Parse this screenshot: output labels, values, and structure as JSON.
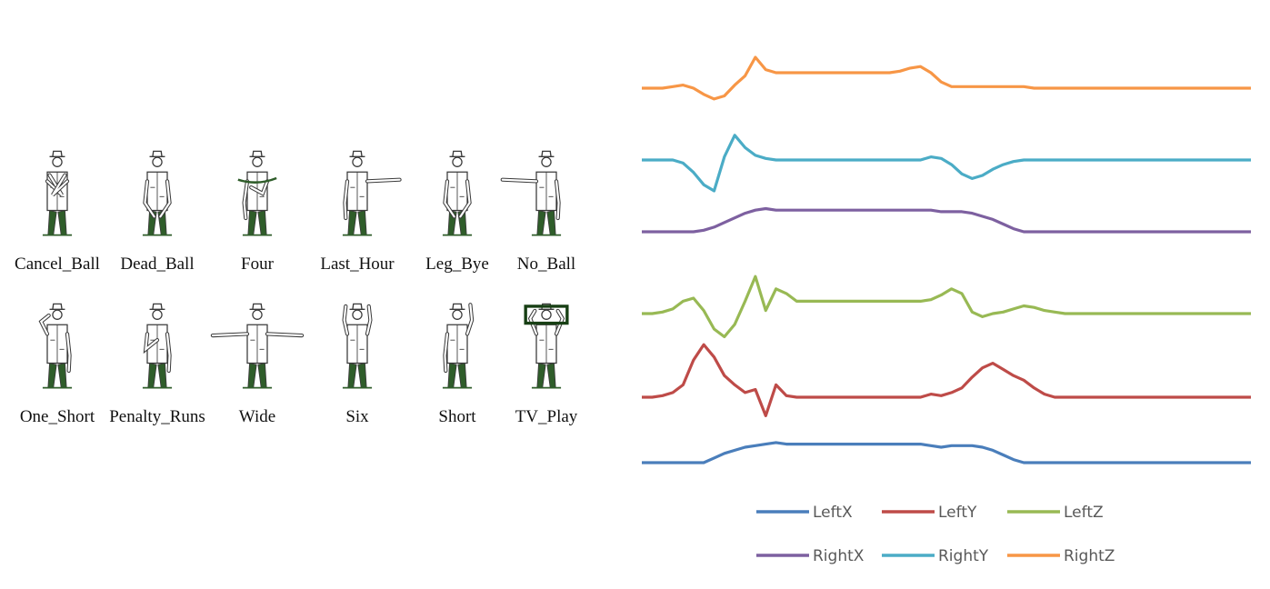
{
  "gestures": [
    {
      "label": "Cancel_Ball",
      "pose": "cross"
    },
    {
      "label": "Dead_Ball",
      "pose": "down"
    },
    {
      "label": "Four",
      "pose": "wave"
    },
    {
      "label": "Last_Hour",
      "pose": "point-right"
    },
    {
      "label": "Leg_Bye",
      "pose": "down"
    },
    {
      "label": "No_Ball",
      "pose": "arm-out-left"
    },
    {
      "label": "One_Short",
      "pose": "touch-shoulder"
    },
    {
      "label": "Penalty_Runs",
      "pose": "hand-on-shoulder"
    },
    {
      "label": "Wide",
      "pose": "both-arms-out"
    },
    {
      "label": "Six",
      "pose": "both-arms-up"
    },
    {
      "label": "Short",
      "pose": "one-arm-up"
    },
    {
      "label": "TV_Play",
      "pose": "tv-box"
    }
  ],
  "colors": {
    "figure_stroke": "#3a3a3a",
    "figure_accent": "#2f5d2a",
    "text": "#111111",
    "legend_text": "#595959"
  },
  "chart_data": {
    "type": "line",
    "title": "",
    "xlabel": "",
    "ylabel": "",
    "grid": false,
    "legend_position": "bottom",
    "x_points": 60,
    "stacked_offsets": true,
    "series": [
      {
        "name": "LeftX",
        "color": "#4a7ebb",
        "values": [
          0,
          0,
          0,
          0,
          0,
          0,
          0,
          0.3,
          0.6,
          0.8,
          1,
          1.1,
          1.2,
          1.3,
          1.2,
          1.2,
          1.2,
          1.2,
          1.2,
          1.2,
          1.2,
          1.2,
          1.2,
          1.2,
          1.2,
          1.2,
          1.2,
          1.2,
          1.1,
          1,
          1.1,
          1.1,
          1.1,
          1.0,
          0.8,
          0.5,
          0.2,
          0,
          0,
          0,
          0,
          0,
          0,
          0,
          0,
          0,
          0,
          0,
          0,
          0,
          0,
          0,
          0,
          0,
          0,
          0,
          0,
          0,
          0,
          0
        ]
      },
      {
        "name": "LeftY",
        "color": "#be4b48",
        "values": [
          0,
          0,
          0.1,
          0.3,
          0.8,
          2.4,
          3.4,
          2.6,
          1.4,
          0.8,
          0.3,
          0.5,
          -1.2,
          0.8,
          0.1,
          0,
          0,
          0,
          0,
          0,
          0,
          0,
          0,
          0,
          0,
          0,
          0,
          0,
          0.2,
          0.1,
          0.3,
          0.6,
          1.3,
          1.9,
          2.2,
          1.8,
          1.4,
          1.1,
          0.6,
          0.2,
          0,
          0,
          0,
          0,
          0,
          0,
          0,
          0,
          0,
          0,
          0,
          0,
          0,
          0,
          0,
          0,
          0,
          0,
          0,
          0
        ]
      },
      {
        "name": "LeftZ",
        "color": "#98b954",
        "values": [
          0,
          0,
          0.1,
          0.3,
          0.8,
          1.0,
          0.2,
          -1.0,
          -1.5,
          -0.7,
          0.8,
          2.4,
          0.2,
          1.6,
          1.3,
          0.8,
          0.8,
          0.8,
          0.8,
          0.8,
          0.8,
          0.8,
          0.8,
          0.8,
          0.8,
          0.8,
          0.8,
          0.8,
          0.9,
          1.2,
          1.6,
          1.3,
          0.1,
          -0.2,
          0,
          0.1,
          0.3,
          0.5,
          0.4,
          0.2,
          0.1,
          0,
          0,
          0,
          0,
          0,
          0,
          0,
          0,
          0,
          0,
          0,
          0,
          0,
          0,
          0,
          0,
          0,
          0,
          0
        ]
      },
      {
        "name": "RightX",
        "color": "#7d60a0",
        "values": [
          0,
          0,
          0,
          0,
          0,
          0,
          0.1,
          0.3,
          0.6,
          0.9,
          1.2,
          1.4,
          1.5,
          1.4,
          1.4,
          1.4,
          1.4,
          1.4,
          1.4,
          1.4,
          1.4,
          1.4,
          1.4,
          1.4,
          1.4,
          1.4,
          1.4,
          1.4,
          1.4,
          1.3,
          1.3,
          1.3,
          1.2,
          1.0,
          0.8,
          0.5,
          0.2,
          0,
          0,
          0,
          0,
          0,
          0,
          0,
          0,
          0,
          0,
          0,
          0,
          0,
          0,
          0,
          0,
          0,
          0,
          0,
          0,
          0,
          0,
          0
        ]
      },
      {
        "name": "RightY",
        "color": "#4bacc6",
        "values": [
          0,
          0,
          0,
          0,
          -0.2,
          -0.8,
          -1.6,
          -2.0,
          0.2,
          1.6,
          0.8,
          0.3,
          0.1,
          0,
          0,
          0,
          0,
          0,
          0,
          0,
          0,
          0,
          0,
          0,
          0,
          0,
          0,
          0,
          0.2,
          0.1,
          -0.3,
          -0.9,
          -1.2,
          -1.0,
          -0.6,
          -0.3,
          -0.1,
          0,
          0,
          0,
          0,
          0,
          0,
          0,
          0,
          0,
          0,
          0,
          0,
          0,
          0,
          0,
          0,
          0,
          0,
          0,
          0,
          0,
          0,
          0
        ]
      },
      {
        "name": "RightZ",
        "color": "#f79646",
        "values": [
          0,
          0,
          0,
          0.1,
          0.2,
          0.0,
          -0.4,
          -0.7,
          -0.5,
          0.2,
          0.8,
          2.0,
          1.2,
          1.0,
          1.0,
          1.0,
          1.0,
          1.0,
          1.0,
          1.0,
          1.0,
          1.0,
          1.0,
          1.0,
          1.0,
          1.1,
          1.3,
          1.4,
          1.0,
          0.4,
          0.1,
          0.1,
          0.1,
          0.1,
          0.1,
          0.1,
          0.1,
          0.1,
          0,
          0,
          0,
          0,
          0,
          0,
          0,
          0,
          0,
          0,
          0,
          0,
          0,
          0,
          0,
          0,
          0,
          0,
          0,
          0,
          0,
          0
        ]
      }
    ]
  }
}
